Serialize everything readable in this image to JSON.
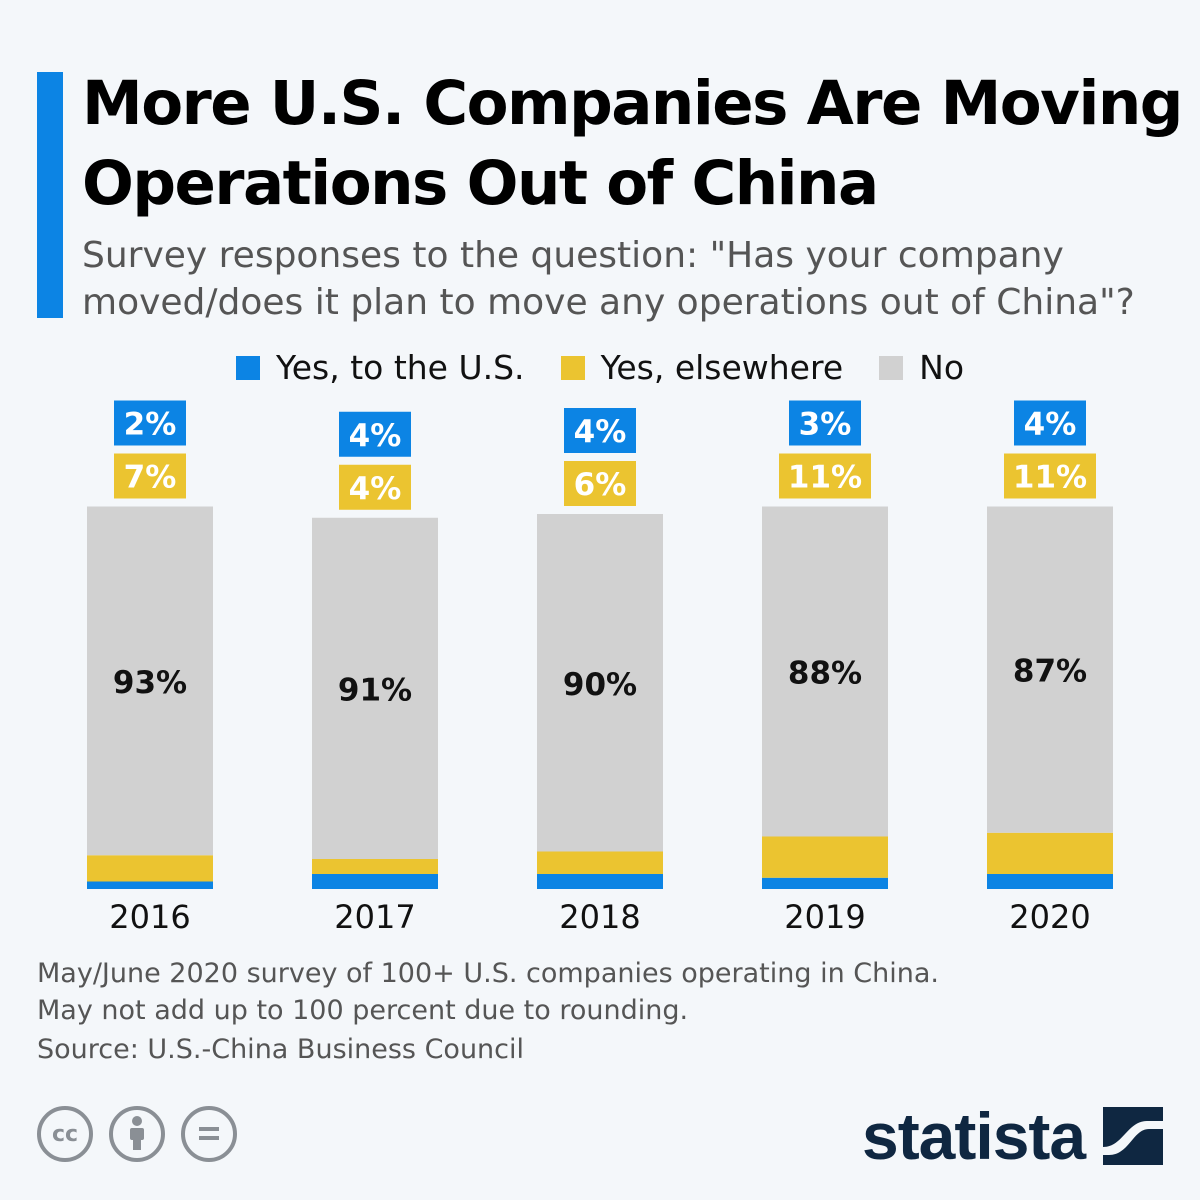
{
  "header": {
    "title": "More U.S. Companies Are Moving Operations Out of China",
    "subtitle": "Survey responses to the question: \"Has your company moved/does it plan to move any operations out of China\"?"
  },
  "chart_data": {
    "type": "bar",
    "stacked": true,
    "categories": [
      "2016",
      "2017",
      "2018",
      "2019",
      "2020"
    ],
    "series": [
      {
        "name": "Yes, to the U.S.",
        "color": "#0c84e4",
        "values": [
          2,
          4,
          4,
          3,
          4
        ],
        "labels": [
          "2%",
          "4%",
          "4%",
          "3%",
          "4%"
        ]
      },
      {
        "name": "Yes, elsewhere",
        "color": "#ebc430",
        "values": [
          7,
          4,
          6,
          11,
          11
        ],
        "labels": [
          "7%",
          "4%",
          "6%",
          "11%",
          "11%"
        ]
      },
      {
        "name": "No",
        "color": "#d1d1d1",
        "values": [
          93,
          91,
          90,
          88,
          87
        ],
        "labels": [
          "93%",
          "91%",
          "90%",
          "88%",
          "87%"
        ]
      }
    ],
    "legend": "top-center",
    "grid": false,
    "ylim": [
      0,
      105
    ]
  },
  "footer": {
    "note_line1": "May/June 2020 survey of 100+ U.S. companies operating in China.",
    "note_line2": "May not add up to 100 percent due to rounding.",
    "source": "Source: U.S.-China Business Council",
    "license_icons": [
      "cc-icon",
      "attribution-icon",
      "no-derivatives-icon"
    ],
    "logo": "statista"
  }
}
